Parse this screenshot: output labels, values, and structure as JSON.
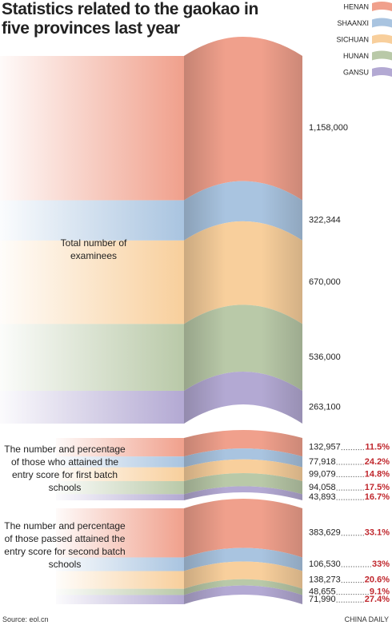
{
  "chart_data": {
    "type": "ribbon",
    "title": "Statistics related to the gaokao in five provinces last year",
    "categories": [
      "Total number of examinees",
      "The number and percentage of those who attained the entry score for first batch schools",
      "The number and percentage of those passed attained the entry score for second batch schools"
    ],
    "series": [
      {
        "name": "HENAN",
        "color": "#f0a08c",
        "values": [
          1158000,
          132957,
          383629
        ],
        "value_labels": [
          "1,158,000",
          "132,957",
          "383,629"
        ],
        "percents": [
          null,
          11.5,
          33.1
        ],
        "percent_labels": [
          null,
          "11.5%",
          "33.1%"
        ]
      },
      {
        "name": "SHAANXI",
        "color": "#a9c4e0",
        "values": [
          322344,
          77918,
          106530
        ],
        "value_labels": [
          "322,344",
          "77,918",
          "106,530"
        ],
        "percents": [
          null,
          24.2,
          33
        ],
        "percent_labels": [
          null,
          "24.2%",
          "33%"
        ]
      },
      {
        "name": "SICHUAN",
        "color": "#f8cf9c",
        "values": [
          670000,
          99079,
          138273
        ],
        "value_labels": [
          "670,000",
          "99,079",
          "138,273"
        ],
        "percents": [
          null,
          14.8,
          20.6
        ],
        "percent_labels": [
          null,
          "14.8%",
          "20.6%"
        ]
      },
      {
        "name": "HUNAN",
        "color": "#b9c9a8",
        "values": [
          536000,
          94058,
          48655
        ],
        "value_labels": [
          "536,000",
          "94,058",
          "48,655"
        ],
        "percents": [
          null,
          17.5,
          9.1
        ],
        "percent_labels": [
          null,
          "17.5%",
          "9.1%"
        ]
      },
      {
        "name": "GANSU",
        "color": "#b3a9d3",
        "values": [
          263100,
          43893,
          71990
        ],
        "value_labels": [
          "263,100",
          "43,893",
          "71,990"
        ],
        "percents": [
          null,
          16.7,
          27.4
        ],
        "percent_labels": [
          null,
          "16.7%",
          "27.4%"
        ]
      }
    ],
    "source": "Source: eol.cn",
    "credit": "CHINA DAILY"
  }
}
